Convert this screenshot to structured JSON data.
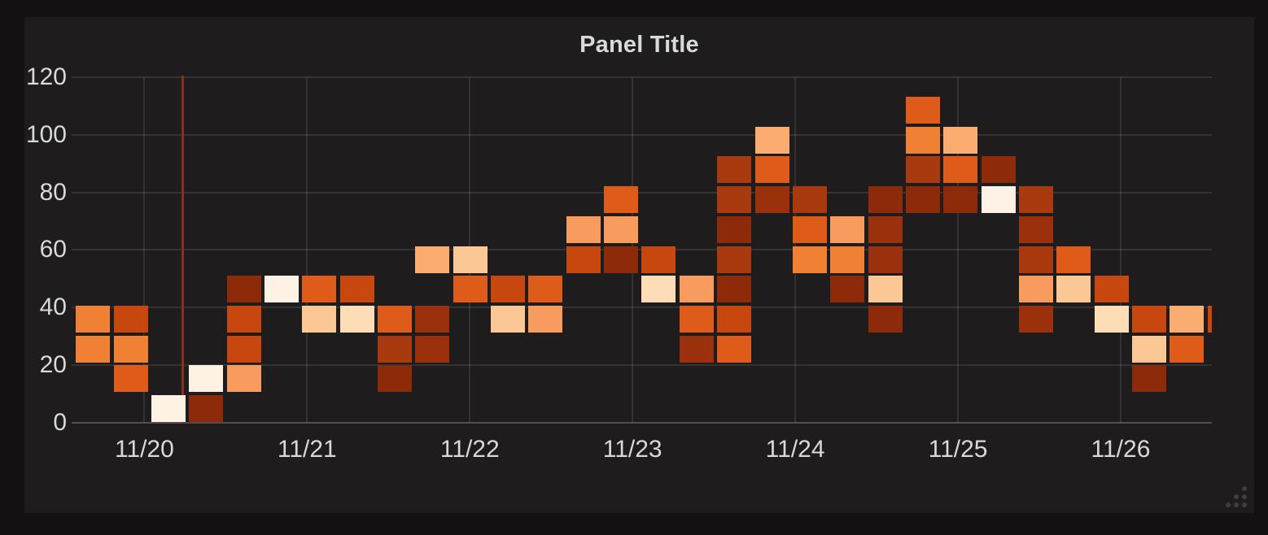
{
  "panel": {
    "title": "Panel Title"
  },
  "colors": {
    "page_bg": "#131111",
    "panel_bg": "#1E1C1C",
    "grid": "rgba(255,255,255,0.10)",
    "axis_line": "#504E4E",
    "text": "#D8D9DA",
    "annotation": "#8F2D12"
  },
  "chart_data": {
    "type": "heatmap",
    "title": "Panel Title",
    "x_axis": {
      "tick_labels": [
        "11/20",
        "11/21",
        "11/22",
        "11/23",
        "11/24",
        "11/25",
        "11/26"
      ]
    },
    "y_axis": {
      "ticks": [
        0,
        20,
        40,
        60,
        80,
        100,
        120
      ],
      "range": [
        0,
        120
      ],
      "bucket_size": 10
    },
    "x_bucket_count": 31,
    "grid": true,
    "legend": false,
    "palette_dark_to_light": [
      "#8C2A0A",
      "#9A300C",
      "#A93A10",
      "#C8470F",
      "#DE5B1A",
      "#F08034",
      "#F89B5F",
      "#FBAC70",
      "#FBC795",
      "#FCDDB5",
      "#FDF2E4"
    ],
    "cells_col_row_color": [
      [
        0,
        3,
        5
      ],
      [
        0,
        2,
        5
      ],
      [
        1,
        3,
        3
      ],
      [
        1,
        2,
        5
      ],
      [
        1,
        1,
        4
      ],
      [
        2,
        0,
        10
      ],
      [
        3,
        1,
        10
      ],
      [
        3,
        0,
        0
      ],
      [
        4,
        4,
        0
      ],
      [
        4,
        3,
        3
      ],
      [
        4,
        2,
        3
      ],
      [
        4,
        1,
        6
      ],
      [
        5,
        4,
        10
      ],
      [
        6,
        4,
        4
      ],
      [
        6,
        3,
        8
      ],
      [
        7,
        4,
        3
      ],
      [
        7,
        3,
        9
      ],
      [
        8,
        3,
        4
      ],
      [
        8,
        2,
        2
      ],
      [
        8,
        1,
        0
      ],
      [
        9,
        5,
        7
      ],
      [
        9,
        3,
        1
      ],
      [
        9,
        2,
        1
      ],
      [
        10,
        5,
        8
      ],
      [
        10,
        4,
        4
      ],
      [
        11,
        4,
        3
      ],
      [
        11,
        3,
        8
      ],
      [
        12,
        4,
        4
      ],
      [
        12,
        3,
        6
      ],
      [
        13,
        6,
        6
      ],
      [
        13,
        5,
        3
      ],
      [
        14,
        7,
        4
      ],
      [
        14,
        6,
        6
      ],
      [
        14,
        5,
        0
      ],
      [
        15,
        5,
        3
      ],
      [
        15,
        4,
        9
      ],
      [
        16,
        4,
        6
      ],
      [
        16,
        3,
        4
      ],
      [
        16,
        2,
        1
      ],
      [
        17,
        8,
        2
      ],
      [
        17,
        7,
        2
      ],
      [
        17,
        6,
        0
      ],
      [
        17,
        5,
        2
      ],
      [
        17,
        4,
        0
      ],
      [
        17,
        3,
        3
      ],
      [
        17,
        2,
        4
      ],
      [
        18,
        9,
        7
      ],
      [
        18,
        8,
        4
      ],
      [
        18,
        7,
        1
      ],
      [
        19,
        7,
        2
      ],
      [
        19,
        6,
        4
      ],
      [
        19,
        5,
        5
      ],
      [
        20,
        6,
        6
      ],
      [
        20,
        5,
        5
      ],
      [
        20,
        4,
        0
      ],
      [
        21,
        7,
        0
      ],
      [
        21,
        6,
        1
      ],
      [
        21,
        5,
        1
      ],
      [
        21,
        4,
        8
      ],
      [
        21,
        3,
        0
      ],
      [
        22,
        10,
        4
      ],
      [
        22,
        9,
        5
      ],
      [
        22,
        8,
        2
      ],
      [
        22,
        7,
        0
      ],
      [
        23,
        9,
        7
      ],
      [
        23,
        8,
        4
      ],
      [
        23,
        7,
        0
      ],
      [
        24,
        8,
        0
      ],
      [
        24,
        7,
        10
      ],
      [
        25,
        7,
        2
      ],
      [
        25,
        6,
        1
      ],
      [
        25,
        5,
        2
      ],
      [
        25,
        4,
        6
      ],
      [
        25,
        3,
        1
      ],
      [
        26,
        5,
        4
      ],
      [
        26,
        4,
        8
      ],
      [
        27,
        4,
        3
      ],
      [
        27,
        3,
        9
      ],
      [
        28,
        3,
        3
      ],
      [
        28,
        2,
        8
      ],
      [
        28,
        1,
        0
      ],
      [
        29,
        3,
        7
      ],
      [
        29,
        2,
        4
      ],
      [
        30,
        3,
        3
      ]
    ],
    "annotation_line": {
      "x_fraction": 0.0974,
      "color": "#8F2D12"
    }
  }
}
